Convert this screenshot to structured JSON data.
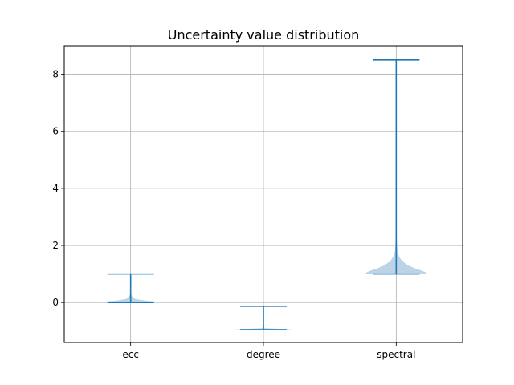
{
  "chart_data": {
    "type": "violin",
    "title": "Uncertainty value distribution",
    "xlabel": "",
    "ylabel": "",
    "categories": [
      "ecc",
      "degree",
      "spectral"
    ],
    "ylim": [
      -1.4,
      9.0
    ],
    "yticks": [
      0,
      2,
      4,
      6,
      8
    ],
    "grid": true,
    "colors": {
      "body": "#b9d2e6",
      "lines": "#1f77b4"
    },
    "violins": [
      {
        "category": "ecc",
        "min": 0.0,
        "max": 1.0,
        "profile": [
          [
            0.0,
            0.45
          ],
          [
            0.03,
            0.4
          ],
          [
            0.07,
            0.22
          ],
          [
            0.12,
            0.07
          ],
          [
            0.18,
            0.03
          ],
          [
            0.25,
            0.015
          ],
          [
            0.35,
            0.005
          ],
          [
            0.5,
            0.0
          ]
        ]
      },
      {
        "category": "degree",
        "min": -0.95,
        "max": -0.13,
        "profile": [
          [
            -0.98,
            0.0
          ],
          [
            -0.96,
            0.2
          ],
          [
            -0.94,
            0.46
          ],
          [
            -0.92,
            0.2
          ],
          [
            -0.9,
            0.02
          ],
          [
            -0.85,
            0.01
          ],
          [
            -0.7,
            0.0
          ],
          [
            -0.13,
            0.0
          ]
        ]
      },
      {
        "category": "spectral",
        "min": 1.0,
        "max": 8.5,
        "profile": [
          [
            1.0,
            0.47
          ],
          [
            1.05,
            0.45
          ],
          [
            1.12,
            0.38
          ],
          [
            1.2,
            0.28
          ],
          [
            1.3,
            0.18
          ],
          [
            1.45,
            0.09
          ],
          [
            1.6,
            0.045
          ],
          [
            1.8,
            0.02
          ],
          [
            2.1,
            0.012
          ],
          [
            2.4,
            0.005
          ],
          [
            2.8,
            0.002
          ],
          [
            3.2,
            0.0
          ]
        ]
      }
    ]
  }
}
